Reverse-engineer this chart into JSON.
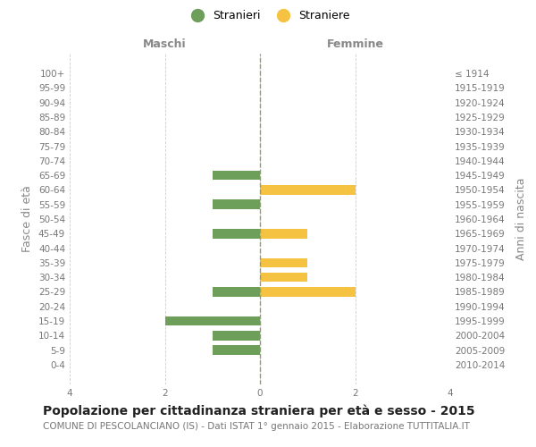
{
  "age_groups": [
    "100+",
    "95-99",
    "90-94",
    "85-89",
    "80-84",
    "75-79",
    "70-74",
    "65-69",
    "60-64",
    "55-59",
    "50-54",
    "45-49",
    "40-44",
    "35-39",
    "30-34",
    "25-29",
    "20-24",
    "15-19",
    "10-14",
    "5-9",
    "0-4"
  ],
  "birth_years": [
    "≤ 1914",
    "1915-1919",
    "1920-1924",
    "1925-1929",
    "1930-1934",
    "1935-1939",
    "1940-1944",
    "1945-1949",
    "1950-1954",
    "1955-1959",
    "1960-1964",
    "1965-1969",
    "1970-1974",
    "1975-1979",
    "1980-1984",
    "1985-1989",
    "1990-1994",
    "1995-1999",
    "2000-2004",
    "2005-2009",
    "2010-2014"
  ],
  "males": [
    0,
    0,
    0,
    0,
    0,
    0,
    0,
    -1,
    0,
    -1,
    0,
    -1,
    0,
    0,
    0,
    -1,
    0,
    -2,
    -1,
    -1,
    0
  ],
  "females": [
    0,
    0,
    0,
    0,
    0,
    0,
    0,
    0,
    2,
    0,
    0,
    1,
    0,
    1,
    1,
    2,
    0,
    0,
    0,
    0,
    0
  ],
  "male_color": "#6d9e5a",
  "female_color": "#f5c242",
  "title": "Popolazione per cittadinanza straniera per età e sesso - 2015",
  "subtitle": "COMUNE DI PESCOLANCIANO (IS) - Dati ISTAT 1° gennaio 2015 - Elaborazione TUTTITALIA.IT",
  "ylabel_left": "Fasce di età",
  "ylabel_right": "Anni di nascita",
  "xlabel_left": "Maschi",
  "xlabel_right": "Femmine",
  "legend_stranieri": "Stranieri",
  "legend_straniere": "Straniere",
  "xlim": [
    -4,
    4
  ],
  "background_color": "#ffffff",
  "grid_color": "#cccccc",
  "bar_height": 0.65,
  "zero_line_color": "#999966",
  "title_fontsize": 10,
  "subtitle_fontsize": 7.5,
  "tick_fontsize": 7.5,
  "label_fontsize": 9,
  "legend_fontsize": 9
}
